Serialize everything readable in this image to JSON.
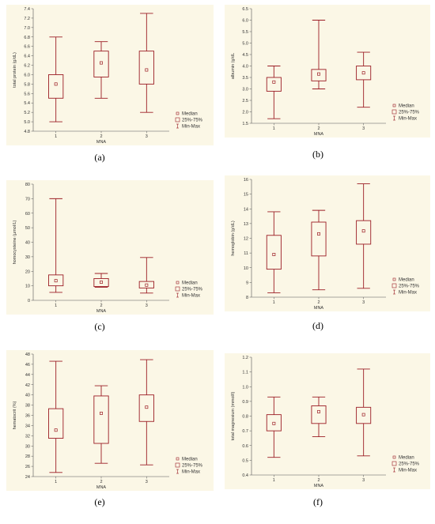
{
  "colors": {
    "box": "#9b1c24",
    "background": "#fbf7e6",
    "axis": "#555555"
  },
  "legend": {
    "median": "Median",
    "iqr": "25%-75%",
    "range": "Min-Max"
  },
  "captions": [
    "(a)",
    "(b)",
    "(c)",
    "(d)",
    "(e)",
    "(f)"
  ],
  "chart_data": [
    {
      "type": "box",
      "xlabel": "MNA",
      "ylabel": "total protein (g/dL)",
      "categories": [
        "1",
        "2",
        "3"
      ],
      "ylim": [
        4.8,
        7.4
      ],
      "yticks": [
        "4.8",
        "5.0",
        "5.2",
        "5.4",
        "5.6",
        "5.8",
        "6.0",
        "6.2",
        "6.4",
        "6.6",
        "6.8",
        "7.0",
        "7.2",
        "7.4"
      ],
      "min": [
        5.0,
        5.5,
        5.2
      ],
      "q1": [
        5.5,
        5.95,
        5.8
      ],
      "median": [
        5.8,
        6.25,
        6.1
      ],
      "q3": [
        6.0,
        6.5,
        6.5
      ],
      "max": [
        6.8,
        6.7,
        7.3
      ]
    },
    {
      "type": "box",
      "xlabel": "MNA",
      "ylabel": "albumin (g/dL",
      "categories": [
        "1",
        "2",
        "3"
      ],
      "ylim": [
        1.5,
        6.5
      ],
      "yticks": [
        "1.5",
        "2.0",
        "2.5",
        "3.0",
        "3.5",
        "4.0",
        "4.5",
        "5.0",
        "5.5",
        "6.0",
        "6.5"
      ],
      "min": [
        1.7,
        3.0,
        2.2
      ],
      "q1": [
        2.9,
        3.35,
        3.4
      ],
      "median": [
        3.3,
        3.65,
        3.7
      ],
      "q3": [
        3.5,
        3.85,
        4.0
      ],
      "max": [
        4.0,
        6.0,
        4.6
      ]
    },
    {
      "type": "box",
      "xlabel": "MNA",
      "ylabel": "homocysteine (µmol/L)",
      "categories": [
        "1",
        "2",
        "3"
      ],
      "ylim": [
        0,
        80
      ],
      "yticks": [
        "0",
        "10",
        "20",
        "30",
        "40",
        "50",
        "60",
        "70",
        "80"
      ],
      "min": [
        5.5,
        9.0,
        5.0
      ],
      "q1": [
        10.0,
        9.5,
        8.5
      ],
      "median": [
        13.5,
        12.5,
        10.5
      ],
      "q3": [
        17.5,
        15.0,
        13.0
      ],
      "max": [
        70.0,
        18.5,
        29.5
      ]
    },
    {
      "type": "box",
      "xlabel": "MNA",
      "ylabel": "hemoglobin (g/dL)",
      "categories": [
        "1",
        "2",
        "3"
      ],
      "ylim": [
        8,
        16
      ],
      "yticks": [
        "8",
        "9",
        "10",
        "11",
        "12",
        "13",
        "14",
        "15",
        "16"
      ],
      "min": [
        8.3,
        8.5,
        8.6
      ],
      "q1": [
        9.9,
        10.8,
        11.6
      ],
      "median": [
        10.9,
        12.3,
        12.5
      ],
      "q3": [
        12.2,
        13.1,
        13.2
      ],
      "max": [
        13.8,
        13.9,
        15.7
      ]
    },
    {
      "type": "box",
      "xlabel": "MNA",
      "ylabel": "hematocrit (%)",
      "categories": [
        "1",
        "2",
        "3"
      ],
      "ylim": [
        24,
        48
      ],
      "yticks": [
        "24",
        "26",
        "28",
        "30",
        "32",
        "34",
        "36",
        "38",
        "40",
        "42",
        "44",
        "46",
        "48"
      ],
      "min": [
        24.8,
        26.6,
        26.3
      ],
      "q1": [
        31.5,
        30.5,
        34.8
      ],
      "median": [
        33.1,
        36.4,
        37.6
      ],
      "q3": [
        37.3,
        39.8,
        40.0
      ],
      "max": [
        46.6,
        41.8,
        46.9
      ]
    },
    {
      "type": "box",
      "xlabel": "MNA",
      "ylabel": "total magnesium (mmol/l)",
      "categories": [
        "1",
        "2",
        "3"
      ],
      "ylim": [
        0.4,
        1.2
      ],
      "yticks": [
        "0.4",
        "0.5",
        "0.6",
        "0.7",
        "0.8",
        "0.9",
        "1.0",
        "1.1",
        "1.2"
      ],
      "min": [
        0.52,
        0.66,
        0.53
      ],
      "q1": [
        0.7,
        0.75,
        0.75
      ],
      "median": [
        0.75,
        0.83,
        0.81
      ],
      "q3": [
        0.81,
        0.87,
        0.86
      ],
      "max": [
        0.93,
        0.93,
        1.12
      ]
    }
  ]
}
